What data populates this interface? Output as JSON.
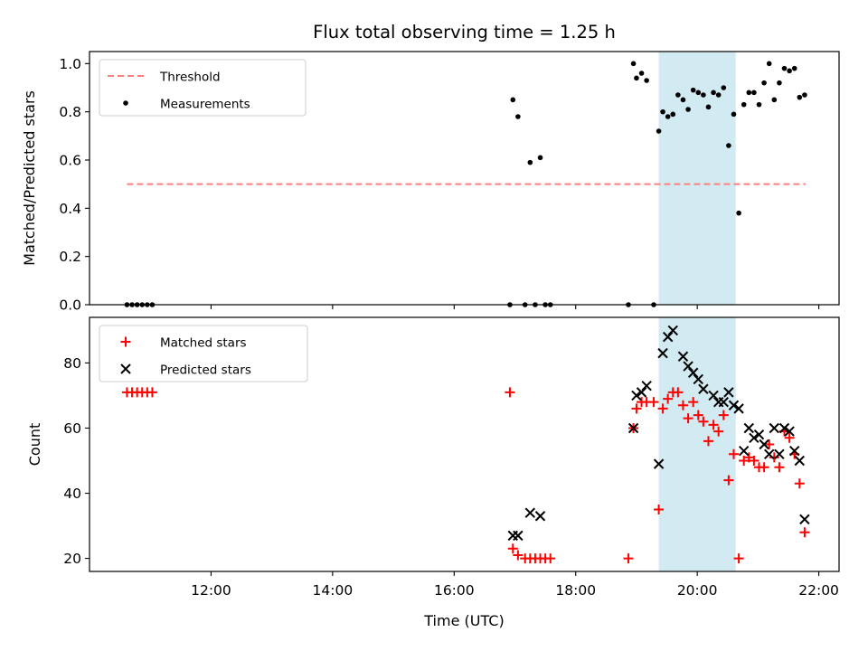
{
  "figure": {
    "title": "Flux total observing time = 1.25 h",
    "xlabel": "Time (UTC)",
    "shaded_span": {
      "start": "19:22",
      "end": "20:38",
      "color": "#add8e6"
    }
  },
  "chart_data": [
    {
      "type": "scatter",
      "title": "Flux total observing time = 1.25 h",
      "xlabel": "",
      "ylabel": "Matched/Predicted stars",
      "xlim": [
        "10:00",
        "22:20"
      ],
      "ylim": [
        0.0,
        1.05
      ],
      "yticks": [
        0.0,
        0.2,
        0.4,
        0.6,
        0.8,
        1.0
      ],
      "xticks": [
        "12:00",
        "14:00",
        "16:00",
        "18:00",
        "20:00",
        "22:00"
      ],
      "legend_position": "top-left",
      "series": [
        {
          "name": "Threshold",
          "type": "line",
          "style": "dashed",
          "color": "#ff7f7f",
          "x": [
            "10:37",
            "21:47"
          ],
          "y": [
            0.5,
            0.5
          ]
        },
        {
          "name": "Measurements",
          "type": "scatter",
          "marker": "dot",
          "color": "#000000",
          "x": [
            "10:37",
            "10:42",
            "10:47",
            "10:52",
            "10:57",
            "11:02",
            "16:55",
            "16:58",
            "17:03",
            "17:10",
            "17:15",
            "17:20",
            "17:25",
            "17:30",
            "17:35",
            "18:52",
            "18:57",
            "19:00",
            "19:05",
            "19:10",
            "19:17",
            "19:22",
            "19:26",
            "19:31",
            "19:36",
            "19:41",
            "19:46",
            "19:51",
            "19:56",
            "20:01",
            "20:06",
            "20:11",
            "20:16",
            "20:21",
            "20:26",
            "20:31",
            "20:36",
            "20:41",
            "20:46",
            "20:51",
            "20:56",
            "21:01",
            "21:06",
            "21:11",
            "21:16",
            "21:21",
            "21:26",
            "21:31",
            "21:36",
            "21:41",
            "21:46"
          ],
          "y": [
            0.0,
            0.0,
            0.0,
            0.0,
            0.0,
            0.0,
            0.0,
            0.85,
            0.78,
            0.0,
            0.59,
            0.0,
            0.61,
            0.0,
            0.0,
            0.0,
            1.0,
            0.94,
            0.96,
            0.93,
            0.0,
            0.72,
            0.8,
            0.78,
            0.79,
            0.87,
            0.85,
            0.81,
            0.89,
            0.88,
            0.87,
            0.82,
            0.88,
            0.87,
            0.9,
            0.66,
            0.79,
            0.38,
            0.83,
            0.88,
            0.88,
            0.83,
            0.92,
            1.0,
            0.85,
            0.92,
            0.98,
            0.97,
            0.98,
            0.86,
            0.87
          ]
        }
      ]
    },
    {
      "type": "scatter",
      "title": "",
      "xlabel": "Time (UTC)",
      "ylabel": "Count",
      "xlim": [
        "10:00",
        "22:20"
      ],
      "ylim": [
        16,
        94
      ],
      "yticks": [
        20,
        40,
        60,
        80
      ],
      "xticks": [
        "12:00",
        "14:00",
        "16:00",
        "18:00",
        "20:00",
        "22:00"
      ],
      "legend_position": "top-left",
      "series": [
        {
          "name": "Matched stars",
          "type": "scatter",
          "marker": "plus",
          "color": "#ff0000",
          "x": [
            "10:37",
            "10:42",
            "10:47",
            "10:52",
            "10:57",
            "11:02",
            "16:55",
            "16:58",
            "17:03",
            "17:10",
            "17:15",
            "17:20",
            "17:25",
            "17:30",
            "17:35",
            "18:52",
            "18:57",
            "19:00",
            "19:05",
            "19:10",
            "19:17",
            "19:22",
            "19:26",
            "19:31",
            "19:36",
            "19:41",
            "19:46",
            "19:51",
            "19:56",
            "20:01",
            "20:06",
            "20:11",
            "20:16",
            "20:21",
            "20:26",
            "20:31",
            "20:36",
            "20:41",
            "20:46",
            "20:51",
            "20:56",
            "21:01",
            "21:06",
            "21:11",
            "21:16",
            "21:21",
            "21:26",
            "21:31",
            "21:36",
            "21:41",
            "21:46"
          ],
          "y": [
            71,
            71,
            71,
            71,
            71,
            71,
            71,
            23,
            21,
            20,
            20,
            20,
            20,
            20,
            20,
            20,
            60,
            66,
            68,
            68,
            68,
            35,
            66,
            69,
            71,
            71,
            67,
            63,
            68,
            64,
            62,
            56,
            61,
            59,
            64,
            44,
            52,
            20,
            50,
            51,
            50,
            48,
            48,
            55,
            51,
            48,
            59,
            57,
            52,
            43,
            28
          ]
        },
        {
          "name": "Predicted stars",
          "type": "scatter",
          "marker": "x",
          "color": "#000000",
          "x": [
            "16:58",
            "17:03",
            "17:15",
            "17:25",
            "18:57",
            "19:00",
            "19:05",
            "19:10",
            "19:22",
            "19:26",
            "19:31",
            "19:36",
            "19:46",
            "19:51",
            "19:56",
            "20:01",
            "20:06",
            "20:16",
            "20:21",
            "20:26",
            "20:31",
            "20:36",
            "20:41",
            "20:46",
            "20:51",
            "20:56",
            "21:01",
            "21:06",
            "21:11",
            "21:16",
            "21:21",
            "21:26",
            "21:31",
            "21:36",
            "21:41",
            "21:46"
          ],
          "y": [
            27,
            27,
            34,
            33,
            60,
            70,
            71,
            73,
            49,
            83,
            88,
            90,
            82,
            79,
            77,
            75,
            72,
            70,
            68,
            68,
            71,
            67,
            66,
            53,
            60,
            57,
            58,
            55,
            52,
            60,
            52,
            60,
            59,
            53,
            50,
            32
          ]
        }
      ]
    }
  ]
}
